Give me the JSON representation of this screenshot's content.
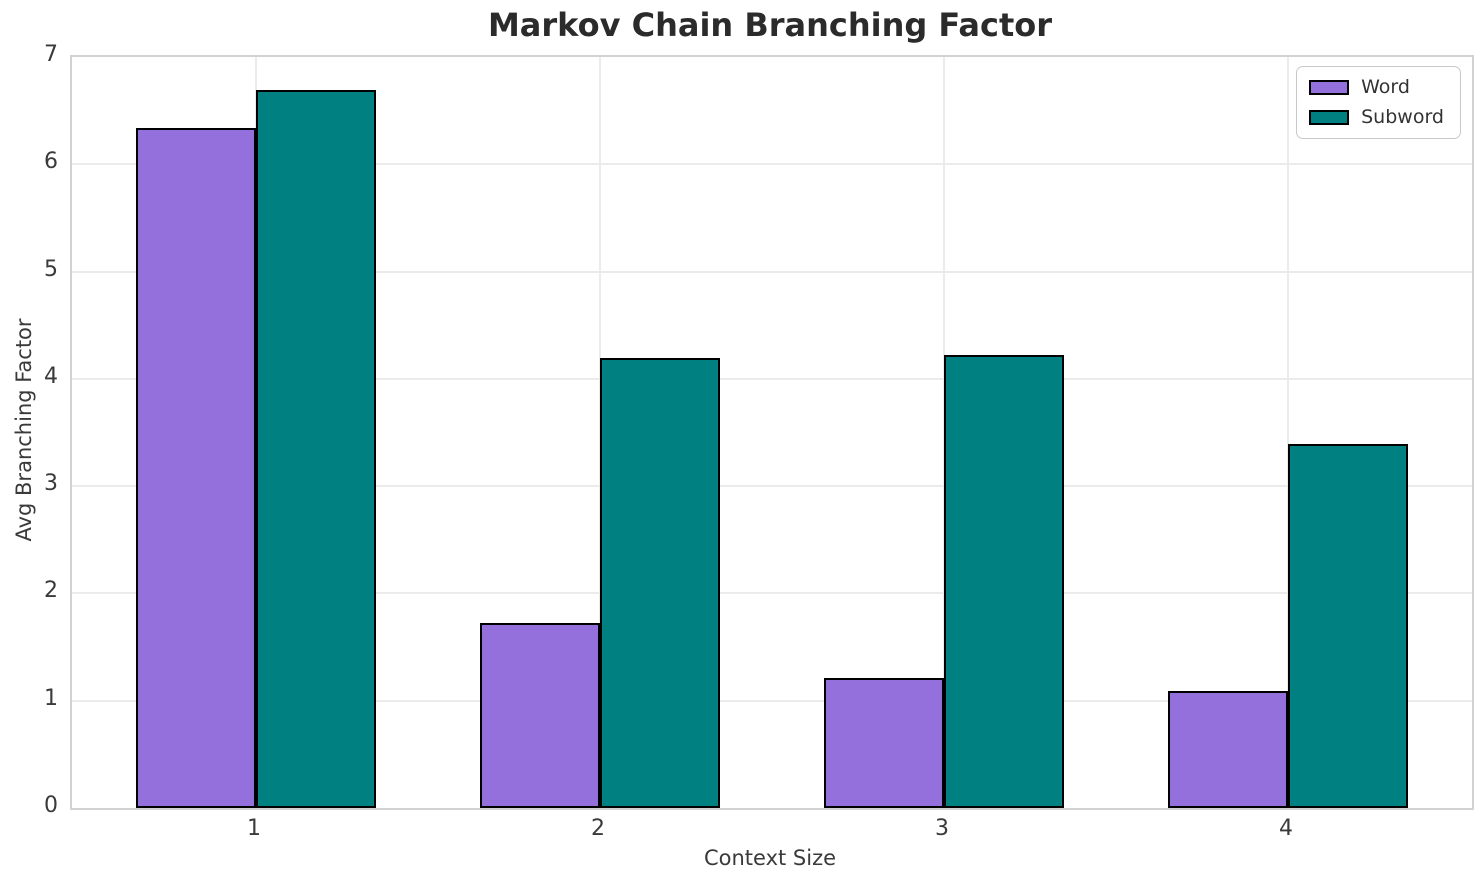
{
  "chart_data": {
    "type": "bar",
    "title": "Markov Chain Branching Factor",
    "xlabel": "Context Size",
    "ylabel": "Avg Branching Factor",
    "categories": [
      "1",
      "2",
      "3",
      "4"
    ],
    "series": [
      {
        "name": "Word",
        "color": "#9370DB",
        "values": [
          6.34,
          1.72,
          1.21,
          1.09
        ]
      },
      {
        "name": "Subword",
        "color": "#008080",
        "values": [
          6.69,
          4.19,
          4.22,
          3.39
        ]
      }
    ],
    "ylim": [
      0,
      7
    ],
    "yticks": [
      0,
      1,
      2,
      3,
      4,
      5,
      6,
      7
    ],
    "bar_width": 0.35,
    "bar_edge_color": "#000000",
    "grid": true,
    "legend_position": "upper right",
    "colors": {
      "grid": "#ebebeb",
      "spine": "#d2d2d2",
      "text": "#3a3a3a",
      "title": "#2b2b2b",
      "background": "#ffffff"
    }
  }
}
